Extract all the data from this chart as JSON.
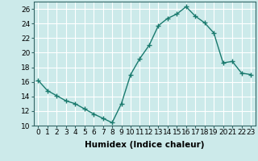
{
  "x": [
    0,
    1,
    2,
    3,
    4,
    5,
    6,
    7,
    8,
    9,
    10,
    11,
    12,
    13,
    14,
    15,
    16,
    17,
    18,
    19,
    20,
    21,
    22,
    23
  ],
  "y": [
    16.2,
    14.8,
    14.1,
    13.4,
    13.0,
    12.3,
    11.6,
    11.0,
    10.4,
    13.0,
    17.0,
    19.2,
    21.0,
    23.7,
    24.7,
    25.3,
    26.3,
    25.0,
    24.1,
    22.7,
    18.6,
    18.8,
    17.2,
    17.0
  ],
  "line_color": "#1a7a6e",
  "marker": "+",
  "marker_size": 4,
  "bg_color": "#cceaea",
  "grid_color": "#ffffff",
  "xlim": [
    -0.5,
    23.5
  ],
  "ylim": [
    10,
    27
  ],
  "yticks": [
    10,
    12,
    14,
    16,
    18,
    20,
    22,
    24,
    26
  ],
  "xticks": [
    0,
    1,
    2,
    3,
    4,
    5,
    6,
    7,
    8,
    9,
    10,
    11,
    12,
    13,
    14,
    15,
    16,
    17,
    18,
    19,
    20,
    21,
    22,
    23
  ],
  "xlabel": "Humidex (Indice chaleur)",
  "xlabel_fontsize": 7.5,
  "tick_fontsize": 6.5,
  "spine_color": "#336666",
  "line_width": 1.0,
  "marker_edge_width": 1.0
}
